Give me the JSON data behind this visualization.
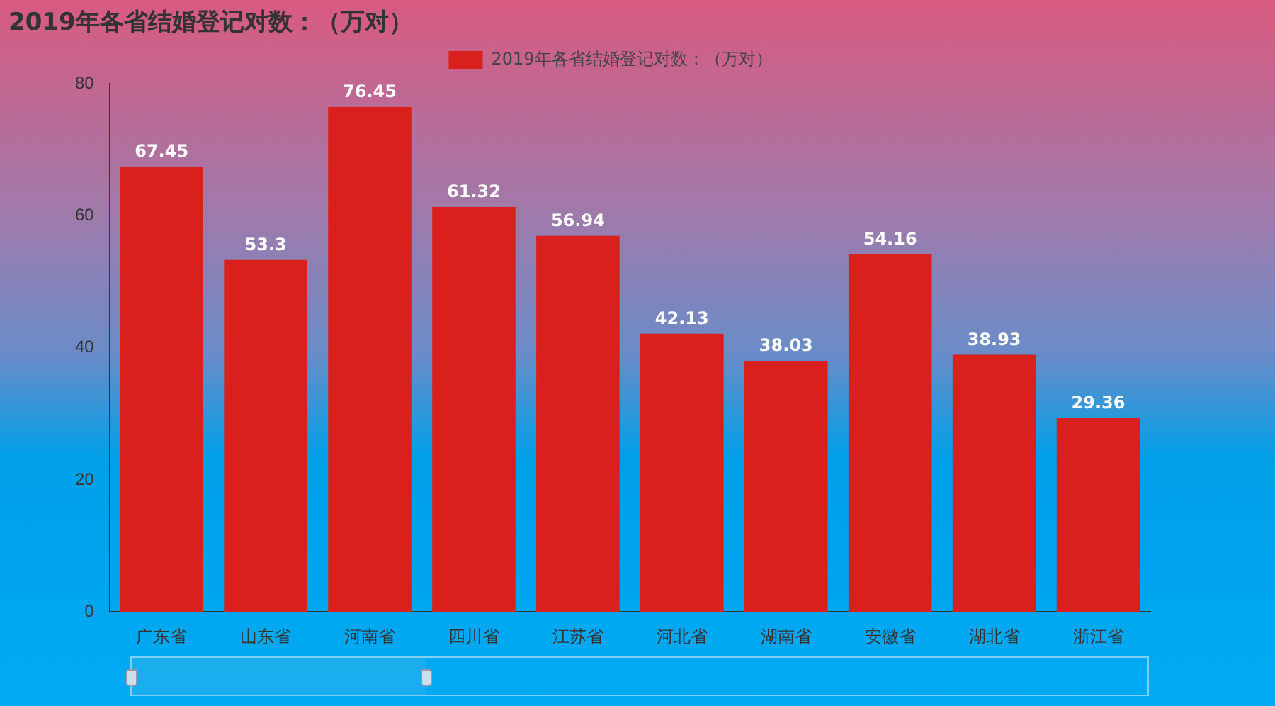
{
  "chart_data": {
    "type": "bar",
    "title": "2019年各省结婚登记对数：（万对）",
    "categories": [
      "广东省",
      "山东省",
      "河南省",
      "四川省",
      "江苏省",
      "河北省",
      "湖南省",
      "安徽省",
      "湖北省",
      "浙江省"
    ],
    "series": [
      {
        "name": "2019年各省结婚登记对数：（万对）",
        "color": "#d9201c",
        "values": [
          67.45,
          53.3,
          76.45,
          61.32,
          56.94,
          42.13,
          38.03,
          54.16,
          38.93,
          29.36
        ]
      }
    ],
    "ylim": [
      0,
      80
    ],
    "yticks": [
      0,
      20,
      40,
      60,
      80
    ],
    "grid": false,
    "legend": "top",
    "data_labels": true
  }
}
